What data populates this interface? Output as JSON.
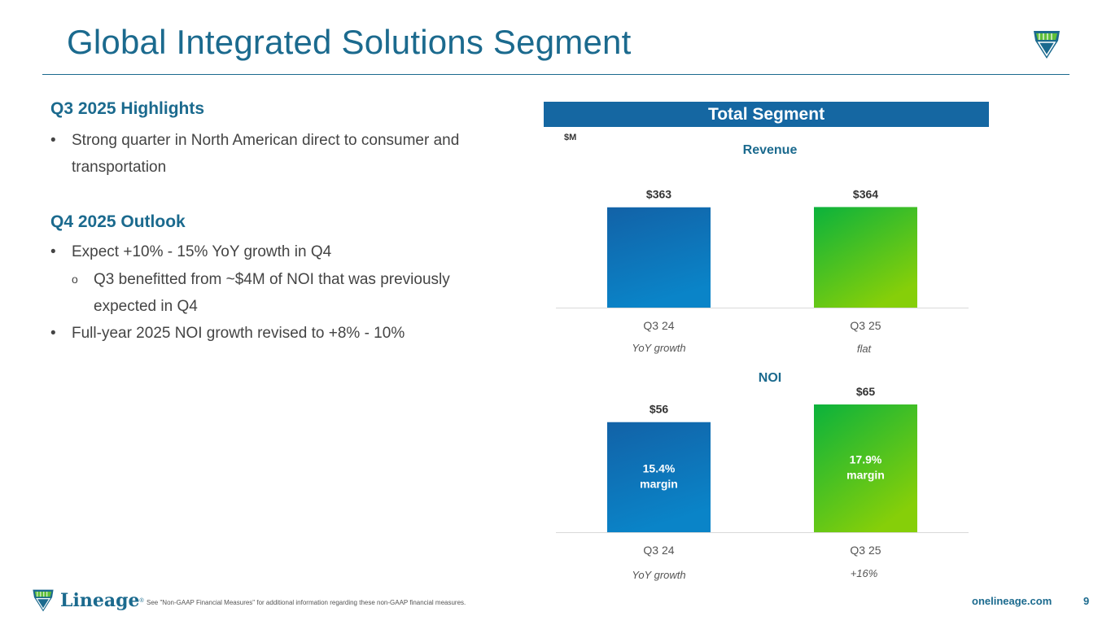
{
  "header": {
    "title": "Global Integrated Solutions Segment"
  },
  "left": {
    "highlights_heading": "Q3 2025 Highlights",
    "highlights": [
      "Strong quarter in North American direct to consumer and transportation"
    ],
    "outlook_heading": "Q4 2025 Outlook",
    "outlook_bullet_1": "Expect +10% - 15% YoY growth in Q4",
    "outlook_sub_1": "Q3 benefitted from ~$4M of NOI that was previously expected in Q4",
    "outlook_bullet_2": "Full-year 2025 NOI growth revised to +8% - 10%"
  },
  "panel": {
    "banner": "Total Segment",
    "unit": "$M"
  },
  "colors": {
    "brand_blue": "#1b6a8e",
    "banner_blue": "#1567a2",
    "bar_blue_top": "#1262a7",
    "bar_blue_bottom": "#0a84c8",
    "bar_green_top": "#0bb23c",
    "bar_green_bottom": "#86cf09"
  },
  "chart_data": [
    {
      "type": "bar",
      "title": "Revenue",
      "categories": [
        "Q3 24",
        "Q3 25"
      ],
      "values": [
        363,
        364
      ],
      "value_labels": [
        "$363",
        "$364"
      ],
      "inner_labels": [
        "",
        ""
      ],
      "growth_label": "YoY growth",
      "growth_value": "flat",
      "ylim": [
        0,
        430
      ],
      "grid": false
    },
    {
      "type": "bar",
      "title": "NOI",
      "categories": [
        "Q3 24",
        "Q3 25"
      ],
      "values": [
        56,
        65
      ],
      "value_labels": [
        "$56",
        "$65"
      ],
      "inner_labels": [
        "15.4%\nmargin",
        "17.9%\nmargin"
      ],
      "growth_label": "YoY growth",
      "growth_value": "+16%",
      "ylim": [
        0,
        65
      ],
      "grid": false
    }
  ],
  "footer": {
    "note": "See \"Non-GAAP Financial Measures\" for additional information regarding these non-GAAP financial measures.",
    "url": "onelineage.com",
    "page": "9",
    "brand": "Lineage",
    "brand_mark": "®"
  }
}
